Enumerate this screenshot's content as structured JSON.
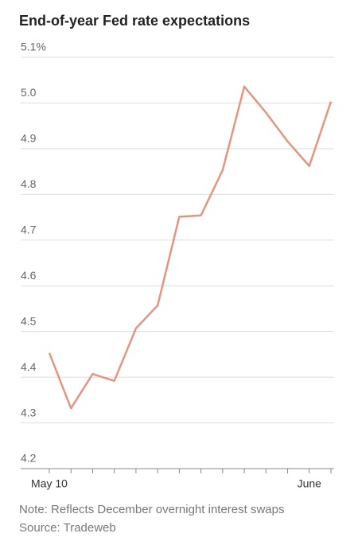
{
  "chart_data": {
    "type": "line",
    "title": "End-of-year Fed rate expectations",
    "notes": [
      "Note: Reflects December overnight interest swaps",
      "Source: Tradeweb"
    ],
    "categories": [
      "May 10",
      null,
      null,
      null,
      null,
      null,
      null,
      null,
      null,
      null,
      null,
      null,
      "June",
      null
    ],
    "series": [
      {
        "name": "End-of-year rate expectation",
        "color": "#e39580",
        "values": [
          4.453,
          4.332,
          4.407,
          4.392,
          4.507,
          4.557,
          4.751,
          4.754,
          4.853,
          5.036,
          4.979,
          4.916,
          4.862,
          5.003
        ]
      }
    ],
    "ylim": [
      4.2,
      5.1
    ],
    "yticks": [
      4.2,
      4.3,
      4.4,
      4.5,
      4.6,
      4.7,
      4.8,
      4.9,
      {
        "value": 5,
        "label": "5.0"
      },
      {
        "value": 5.1,
        "label": "5.1%"
      }
    ],
    "grid": true
  }
}
